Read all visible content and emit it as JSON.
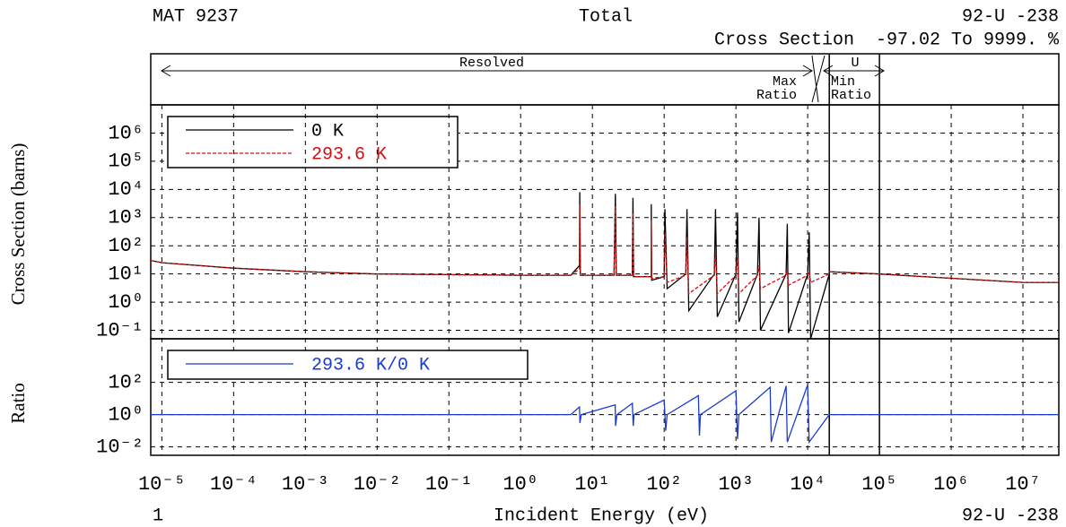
{
  "header": {
    "left": "MAT 9237",
    "center": "Total",
    "right": "92-U -238",
    "subtitle": "Cross Section  -97.02 To 9999. %",
    "resolved": "Resolved",
    "unresolved": "U",
    "max_ratio": [
      "Max",
      "Ratio"
    ],
    "min_ratio": [
      "Min",
      "Ratio"
    ]
  },
  "footer": {
    "left": "1",
    "xlabel": "Incident Energy (eV)",
    "right": "92-U -238"
  },
  "chart_data": [
    {
      "type": "line",
      "ylabel": "Cross Section (barns)",
      "log_x": true,
      "log_y": true,
      "grid": true,
      "legend": "upper left",
      "xlim": [
        7e-06,
        31600000
      ],
      "ylim": [
        0.05,
        10000000
      ],
      "yticks": [
        {
          "value": 0.1,
          "label": "10⁻¹"
        },
        {
          "value": 1,
          "label": "10⁰"
        },
        {
          "value": 10,
          "label": "10¹"
        },
        {
          "value": 100,
          "label": "10²"
        },
        {
          "value": 1000,
          "label": "10³"
        },
        {
          "value": 10000,
          "label": "10⁴"
        },
        {
          "value": 100000,
          "label": "10⁵"
        },
        {
          "value": 1000000,
          "label": "10⁶"
        }
      ],
      "region_bounds": [
        20000,
        100000
      ],
      "x": [
        7e-06,
        1e-05,
        0.0001,
        0.001,
        0.01,
        0.1,
        1,
        5,
        6.6,
        6.67,
        6.8,
        20,
        20.87,
        21.5,
        36,
        36.68,
        37.5,
        66,
        66.03,
        67,
        100,
        102.5,
        110,
        200,
        208,
        220,
        500,
        520,
        550,
        1000,
        1050,
        1100,
        2000,
        2100,
        2200,
        5000,
        5200,
        5400,
        10000,
        10500,
        11000,
        20000,
        20100,
        100000,
        1000000,
        10000000,
        31600000
      ],
      "series": [
        {
          "name": "0 K",
          "color": "#000000",
          "dash": false,
          "values": [
            30,
            25,
            16,
            12,
            10,
            9.5,
            9,
            9,
            20,
            8000,
            9,
            9,
            7000,
            9,
            9,
            5000,
            8,
            8,
            3000,
            6,
            8,
            2000,
            3,
            10,
            2000,
            0.5,
            10,
            2000,
            0.3,
            10,
            1500,
            0.2,
            10,
            1000,
            0.1,
            10,
            600,
            0.08,
            10,
            300,
            0.05,
            10,
            12,
            10,
            7,
            5,
            5
          ]
        },
        {
          "name": "293.6 K",
          "color": "#d01010",
          "dash": true,
          "values": [
            30,
            25,
            16,
            12,
            10,
            9.5,
            9,
            9,
            15,
            3000,
            9,
            9,
            2500,
            9,
            9,
            1500,
            8,
            8,
            800,
            7,
            8,
            300,
            5,
            9,
            200,
            2,
            9,
            60,
            2,
            9,
            40,
            2,
            9,
            20,
            3,
            9,
            15,
            4,
            9,
            12,
            5,
            10,
            12,
            10,
            7,
            5,
            5
          ]
        }
      ]
    },
    {
      "type": "line",
      "ylabel": "Ratio",
      "log_x": true,
      "log_y": true,
      "grid": true,
      "legend": "upper left",
      "xlim": [
        7e-06,
        31600000
      ],
      "ylim": [
        0.003,
        50000
      ],
      "yticks": [
        {
          "value": 0.01,
          "label": "10⁻²"
        },
        {
          "value": 1,
          "label": "10⁰"
        },
        {
          "value": 100,
          "label": "10²"
        }
      ],
      "xticks": [
        {
          "value": 1e-05,
          "label": "10⁻⁵"
        },
        {
          "value": 0.0001,
          "label": "10⁻⁴"
        },
        {
          "value": 0.001,
          "label": "10⁻³"
        },
        {
          "value": 0.01,
          "label": "10⁻²"
        },
        {
          "value": 0.1,
          "label": "10⁻¹"
        },
        {
          "value": 1,
          "label": "10⁰"
        },
        {
          "value": 10,
          "label": "10¹"
        },
        {
          "value": 100,
          "label": "10²"
        },
        {
          "value": 1000,
          "label": "10³"
        },
        {
          "value": 10000,
          "label": "10⁴"
        },
        {
          "value": 100000,
          "label": "10⁵"
        },
        {
          "value": 1000000,
          "label": "10⁶"
        },
        {
          "value": 10000000,
          "label": "10⁷"
        }
      ],
      "x": [
        7e-06,
        0.001,
        5,
        6.6,
        6.7,
        7,
        20.8,
        21,
        22,
        36,
        37,
        38,
        100,
        105,
        110,
        300,
        310,
        320,
        1000,
        1050,
        1100,
        3000,
        3100,
        5000,
        5200,
        10000,
        10500,
        20000,
        10000000,
        31600000
      ],
      "series": [
        {
          "name": "293.6 K/0 K",
          "color": "#1a3cd0",
          "dash": false,
          "values": [
            1,
            1,
            1,
            3,
            0.3,
            1,
            4,
            0.2,
            1,
            5,
            0.2,
            1,
            8,
            0.1,
            1,
            15,
            0.05,
            1,
            30,
            0.03,
            1,
            50,
            0.02,
            60,
            0.02,
            70,
            0.02,
            1,
            1,
            1
          ]
        }
      ]
    }
  ]
}
